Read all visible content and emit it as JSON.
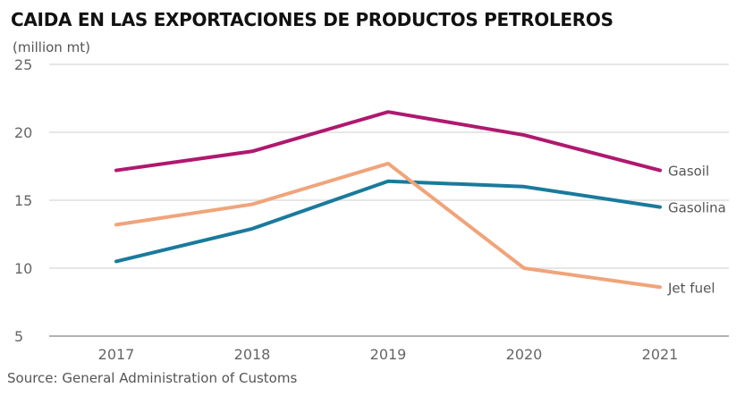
{
  "chart_data": {
    "type": "line",
    "title": "CAIDA EN LAS EXPORTACIONES DE PRODUCTOS PETROLEROS",
    "ylabel": "(million mt)",
    "source": "Source: General Administration of Customs",
    "x": [
      "2017",
      "2018",
      "2019",
      "2020",
      "2021"
    ],
    "ylim": [
      5,
      25
    ],
    "yticks": [
      "5",
      "10",
      "15",
      "20",
      "25"
    ],
    "grid": true,
    "legend": "direct labels at line ends",
    "series": [
      {
        "name": "Gasoil",
        "color": "#b0186e",
        "values": [
          17.2,
          18.6,
          21.5,
          19.8,
          17.2
        ]
      },
      {
        "name": "Gasolina",
        "color": "#1a7a9c",
        "values": [
          10.5,
          12.9,
          16.4,
          16.0,
          14.5
        ]
      },
      {
        "name": "Jet fuel",
        "color": "#f0a47a",
        "values": [
          13.2,
          14.7,
          17.7,
          10.0,
          8.6
        ]
      }
    ]
  }
}
